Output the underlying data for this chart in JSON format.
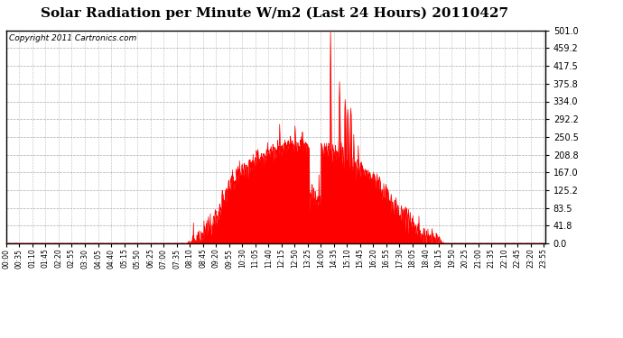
{
  "title": "Solar Radiation per Minute W/m2 (Last 24 Hours) 20110427",
  "copyright": "Copyright 2011 Cartronics.com",
  "ytick_values": [
    0.0,
    41.8,
    83.5,
    125.2,
    167.0,
    208.8,
    250.5,
    292.2,
    334.0,
    375.8,
    417.5,
    459.2,
    501.0
  ],
  "ymin": 0.0,
  "ymax": 501.0,
  "fill_color": "#ff0000",
  "bg_color": "#ffffff",
  "grid_color": "#aaaaaa",
  "red_dash_color": "#dd0000",
  "dashed_line_y": 0.0,
  "title_fontsize": 11,
  "copyright_fontsize": 6.5,
  "n_minutes": 1440,
  "sunrise_min": 480,
  "sunset_min": 1170,
  "peak_minute": 866,
  "peak_val": 501.0
}
